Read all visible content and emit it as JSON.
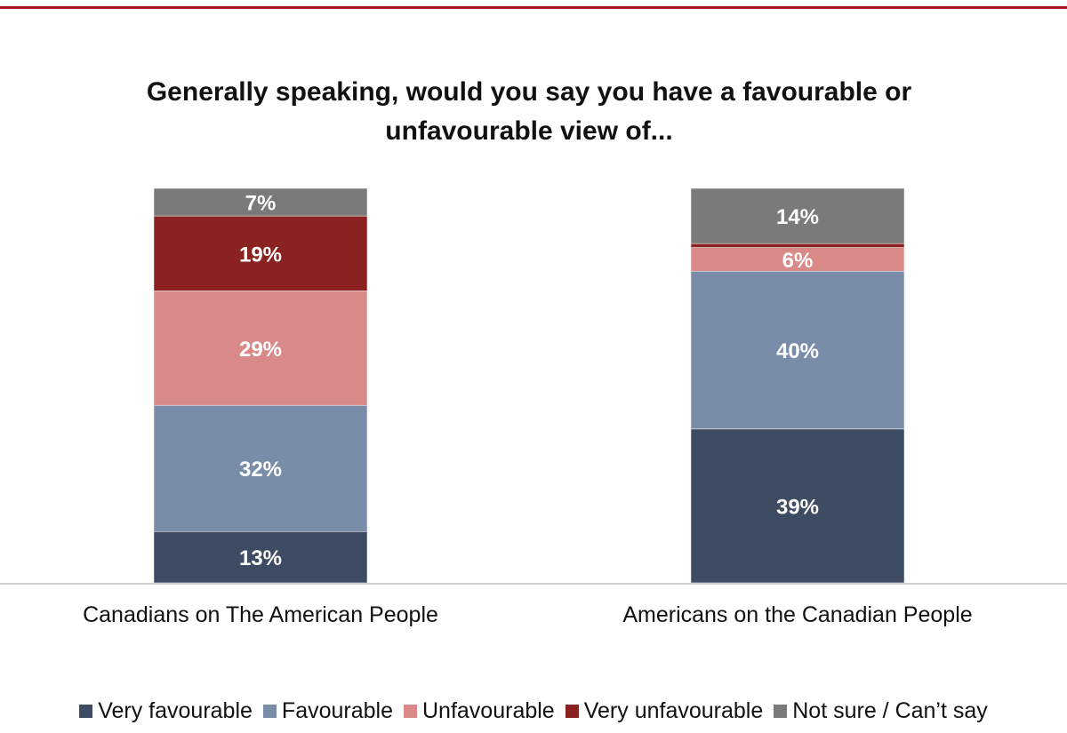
{
  "chart_data": {
    "type": "bar",
    "stacked": true,
    "title_lines": [
      "Generally speaking, would you say you have a favourable or",
      "unfavourable view of..."
    ],
    "categories": [
      "Canadians on The American People",
      "Americans on the Canadian People"
    ],
    "series": [
      {
        "name": "Very favourable",
        "color": "#3d4b63",
        "values": [
          13,
          39
        ],
        "labels": [
          "13%",
          "39%"
        ]
      },
      {
        "name": "Favourable",
        "color": "#7a8da8",
        "values": [
          32,
          40
        ],
        "labels": [
          "32%",
          "40%"
        ]
      },
      {
        "name": "Unfavourable",
        "color": "#d98a88",
        "values": [
          29,
          6
        ],
        "labels": [
          "29%",
          "6%"
        ]
      },
      {
        "name": "Very unfavourable",
        "color": "#8b2222",
        "values": [
          19,
          1
        ],
        "labels": [
          "19%",
          ""
        ]
      },
      {
        "name": "Not sure / Can’t say",
        "color": "#7a7a7a",
        "values": [
          7,
          14
        ],
        "labels": [
          "7%",
          "14%"
        ]
      }
    ],
    "ylim": [
      0,
      100
    ],
    "legend_position": "bottom",
    "grid": false
  }
}
